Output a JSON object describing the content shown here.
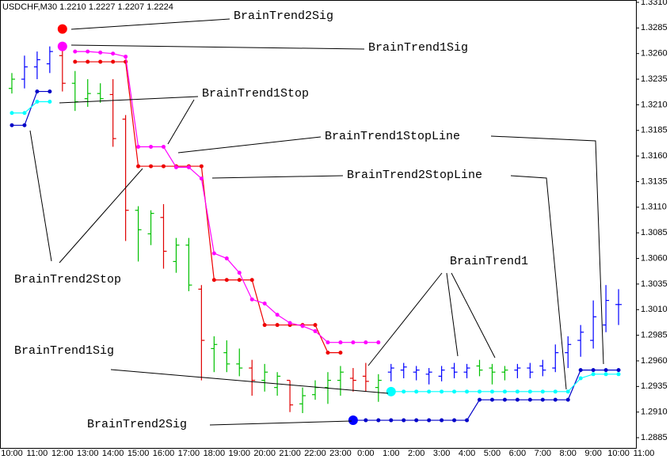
{
  "chart_data": {
    "type": "ohlc",
    "title": "USDCHF,M30  1.2210 1.2227 1.2207 1.2224",
    "categories": [
      "10:00",
      null,
      "11:00",
      null,
      "12:00",
      null,
      "13:00",
      null,
      "14:00",
      null,
      "15:00",
      null,
      "16:00",
      null,
      "17:00",
      null,
      "18:00",
      null,
      "19:00",
      null,
      "20:00",
      null,
      "21:00",
      null,
      "22:00",
      null,
      "23:00",
      null,
      "0:00",
      null,
      "1:00",
      null,
      "2:00",
      null,
      "3:00",
      null,
      "4:00",
      null,
      "5:00",
      null,
      "6:00",
      null,
      "7:00",
      null,
      "8:00",
      null,
      "9:00",
      null,
      "10:00",
      null,
      "11:00"
    ],
    "open": [
      1.3226,
      1.3235,
      1.3247,
      1.325,
      1.3258,
      1.3231,
      1.3216,
      1.3221,
      1.322,
      1.3196,
      1.3107,
      1.3084,
      1.31,
      1.3057,
      1.3073,
      1.303,
      1.2972,
      1.2968,
      1.2957,
      1.2953,
      1.2941,
      1.2934,
      1.2941,
      1.2918,
      1.2927,
      1.2934,
      1.2941,
      1.2943,
      1.2945,
      1.2934,
      1.2949,
      1.2951,
      1.2949,
      1.2947,
      1.2945,
      1.2953,
      1.2949,
      1.2955,
      1.2953,
      1.2949,
      1.2951,
      1.2953,
      1.2955,
      1.2953,
      1.2968,
      1.298,
      1.298,
      1.2995,
      1.3015,
      null,
      null
    ],
    "high": [
      1.3241,
      1.3258,
      1.3262,
      1.3267,
      1.3264,
      1.3243,
      1.3235,
      1.3231,
      1.3235,
      1.32,
      1.3111,
      1.3107,
      1.3113,
      1.308,
      1.308,
      1.3034,
      1.2984,
      1.298,
      1.2972,
      1.2961,
      1.2957,
      1.2949,
      1.2941,
      1.2934,
      1.2941,
      1.2949,
      1.2955,
      1.2953,
      1.2958,
      1.2947,
      1.2957,
      1.2958,
      1.2955,
      1.2953,
      1.2955,
      1.2958,
      1.2957,
      1.2961,
      1.2957,
      1.2955,
      1.2957,
      1.2958,
      1.2961,
      1.2976,
      1.2984,
      1.2995,
      1.3019,
      1.3034,
      1.303,
      null,
      null
    ],
    "low": [
      1.3221,
      1.3226,
      1.3235,
      1.3241,
      1.3223,
      1.3204,
      1.3208,
      1.3212,
      1.3169,
      1.3077,
      1.3057,
      1.3073,
      1.305,
      1.3046,
      1.3028,
      1.2941,
      1.2949,
      1.2949,
      1.2945,
      1.2926,
      1.293,
      1.2926,
      1.291,
      1.2909,
      1.2922,
      1.2918,
      1.2926,
      1.293,
      1.293,
      1.292,
      1.294,
      1.2943,
      1.2941,
      1.2937,
      1.294,
      1.2943,
      1.2943,
      1.2945,
      1.2937,
      1.2941,
      1.2943,
      1.2943,
      1.2945,
      1.2949,
      1.2953,
      1.2964,
      1.2972,
      1.2988,
      1.2995,
      null,
      null
    ],
    "close": [
      1.3235,
      1.3247,
      1.3254,
      1.3262,
      1.3231,
      1.3213,
      1.3221,
      1.3216,
      1.3177,
      1.3107,
      1.3088,
      1.3104,
      1.3067,
      1.3073,
      1.3034,
      1.298,
      1.2976,
      1.2957,
      1.2953,
      1.2941,
      1.2949,
      1.2945,
      1.2917,
      1.2926,
      1.2934,
      1.2941,
      1.2949,
      1.2941,
      1.294,
      1.2941,
      1.2953,
      1.2954,
      1.2951,
      1.2949,
      1.2951,
      1.2949,
      1.2953,
      1.2951,
      1.2949,
      1.2951,
      1.2953,
      1.2949,
      1.2951,
      1.2968,
      1.2976,
      1.2988,
      1.3003,
      1.3019,
      1.3015,
      null,
      null
    ],
    "bar_colors": [
      "#00c000",
      "#0000ff",
      "#0000ff",
      "#0000ff",
      "#e00000",
      "#00c000",
      "#00c000",
      "#00c000",
      "#e00000",
      "#e00000",
      "#00c000",
      "#00c000",
      "#e00000",
      "#00c000",
      "#00c000",
      "#e00000",
      "#00c000",
      "#00c000",
      "#00c000",
      "#e00000",
      "#00c000",
      "#00c000",
      "#e00000",
      "#00c000",
      "#00c000",
      "#00c000",
      "#00c000",
      "#e00000",
      "#e00000",
      "#00c000",
      "#0000ff",
      "#0000ff",
      "#0000ff",
      "#0000ff",
      "#0000ff",
      "#0000ff",
      "#0000ff",
      "#00c000",
      "#00c000",
      "#00c000",
      "#0000ff",
      "#0000ff",
      "#0000ff",
      "#0000ff",
      "#0000ff",
      "#0000ff",
      "#0000ff",
      "#0000ff",
      "#0000ff",
      null,
      null
    ],
    "series": [
      {
        "style": "line-dots",
        "color": "#0000c8",
        "values": [
          1.319,
          1.319,
          1.3223,
          1.3223,
          null,
          null,
          null,
          null,
          null,
          null,
          null,
          null,
          null,
          null,
          null,
          null,
          null,
          null,
          null,
          null,
          null,
          null,
          null,
          null,
          null,
          null,
          null,
          1.2902,
          1.2902,
          1.2902,
          1.2902,
          1.2902,
          1.2902,
          1.2902,
          1.2902,
          1.2902,
          1.2902,
          1.2922,
          1.2922,
          1.2922,
          1.2922,
          1.2922,
          1.2922,
          1.2922,
          1.2922,
          1.2951,
          1.2951,
          1.2951,
          1.2951,
          null,
          null
        ]
      },
      {
        "style": "line-dots",
        "color": "#00ffff",
        "values": [
          1.3202,
          1.3202,
          1.3213,
          1.3213,
          null,
          null,
          null,
          null,
          null,
          null,
          null,
          null,
          null,
          null,
          null,
          null,
          null,
          null,
          null,
          null,
          null,
          null,
          null,
          null,
          null,
          null,
          null,
          null,
          null,
          null,
          1.293,
          1.293,
          1.293,
          1.293,
          1.293,
          1.293,
          1.293,
          1.293,
          1.293,
          1.293,
          1.293,
          1.293,
          1.293,
          1.293,
          1.293,
          1.2943,
          1.2947,
          1.2947,
          1.2947,
          null,
          null
        ]
      },
      {
        "style": "line-dots",
        "color": "#ee0000",
        "values": [
          null,
          null,
          null,
          null,
          null,
          1.3252,
          1.3252,
          1.3252,
          1.3252,
          1.3252,
          1.315,
          1.315,
          1.315,
          1.315,
          1.315,
          1.315,
          1.3039,
          1.3039,
          1.3039,
          1.3039,
          1.2995,
          1.2995,
          1.2995,
          1.2995,
          1.2995,
          1.2968,
          1.2968,
          null,
          null,
          null,
          null,
          null,
          null,
          null,
          null,
          null,
          null,
          null,
          null,
          null,
          null,
          null,
          null,
          null,
          null,
          null,
          null,
          null,
          null,
          null,
          null
        ]
      },
      {
        "style": "line-dots",
        "color": "#ff00ff",
        "values": [
          null,
          null,
          null,
          null,
          null,
          1.3262,
          1.3262,
          1.3261,
          1.326,
          1.3257,
          1.3169,
          1.3169,
          1.3169,
          1.3149,
          1.3149,
          1.3138,
          1.3065,
          1.306,
          1.3046,
          1.302,
          1.3016,
          1.3005,
          1.2997,
          1.2994,
          1.2989,
          1.2978,
          1.2978,
          1.2978,
          1.2978,
          1.2978,
          null,
          null,
          null,
          null,
          null,
          null,
          null,
          null,
          null,
          null,
          null,
          null,
          null,
          null,
          null,
          null,
          null,
          null,
          null,
          null,
          null
        ]
      },
      {
        "style": "signal",
        "color": "#ff0000",
        "values": [
          null,
          null,
          null,
          null,
          1.3284,
          null,
          null,
          null,
          null,
          null,
          null,
          null,
          null,
          null,
          null,
          null,
          null,
          null,
          null,
          null,
          null,
          null,
          null,
          null,
          null,
          null,
          null,
          null,
          null,
          null,
          null,
          null,
          null,
          null,
          null,
          null,
          null,
          null,
          null,
          null,
          null,
          null,
          null,
          null,
          null,
          null,
          null,
          null,
          null,
          null,
          null
        ]
      },
      {
        "style": "signal",
        "color": "#ff00ff",
        "values": [
          null,
          null,
          null,
          null,
          1.3267,
          null,
          null,
          null,
          null,
          null,
          null,
          null,
          null,
          null,
          null,
          null,
          null,
          null,
          null,
          null,
          null,
          null,
          null,
          null,
          null,
          null,
          null,
          null,
          null,
          null,
          null,
          null,
          null,
          null,
          null,
          null,
          null,
          null,
          null,
          null,
          null,
          null,
          null,
          null,
          null,
          null,
          null,
          null,
          null,
          null,
          null
        ]
      },
      {
        "style": "signal",
        "color": "#0000ff",
        "values": [
          null,
          null,
          null,
          null,
          null,
          null,
          null,
          null,
          null,
          null,
          null,
          null,
          null,
          null,
          null,
          null,
          null,
          null,
          null,
          null,
          null,
          null,
          null,
          null,
          null,
          null,
          null,
          1.2902,
          null,
          null,
          null,
          null,
          null,
          null,
          null,
          null,
          null,
          null,
          null,
          null,
          null,
          null,
          null,
          null,
          null,
          null,
          null,
          null,
          null,
          null,
          null
        ]
      },
      {
        "style": "signal",
        "color": "#00ffff",
        "values": [
          null,
          null,
          null,
          null,
          null,
          null,
          null,
          null,
          null,
          null,
          null,
          null,
          null,
          null,
          null,
          null,
          null,
          null,
          null,
          null,
          null,
          null,
          null,
          null,
          null,
          null,
          null,
          null,
          null,
          null,
          1.293,
          null,
          null,
          null,
          null,
          null,
          null,
          null,
          null,
          null,
          null,
          null,
          null,
          null,
          null,
          null,
          null,
          null,
          null,
          null,
          null
        ]
      }
    ],
    "ylim": [
      1.2875,
      1.33123
    ],
    "yticks": [
      {
        "value": 1.331,
        "label": "1.3310"
      },
      1.3285,
      {
        "value": 1.326,
        "label": "1.3260"
      },
      1.3235,
      {
        "value": 1.321,
        "label": "1.3210"
      },
      1.3185,
      {
        "value": 1.316,
        "label": "1.3160"
      },
      1.3135,
      {
        "value": 1.311,
        "label": "1.3110"
      },
      1.3085,
      {
        "value": 1.306,
        "label": "1.3060"
      },
      1.3035,
      {
        "value": 1.301,
        "label": "1.3010"
      },
      1.2985,
      {
        "value": 1.296,
        "label": "1.2960"
      },
      1.2935,
      {
        "value": 1.291,
        "label": "1.2910"
      },
      1.2885
    ],
    "grid": false,
    "annotations": [
      "BrainTrend2Sig",
      "BrainTrend1Sig",
      "BrainTrend1Stop",
      "BrainTrend1StopLine",
      "BrainTrend2StopLine",
      "BrainTrend2Stop",
      "BrainTrend1",
      "BrainTrend1Sig",
      "BrainTrend2Sig"
    ]
  }
}
